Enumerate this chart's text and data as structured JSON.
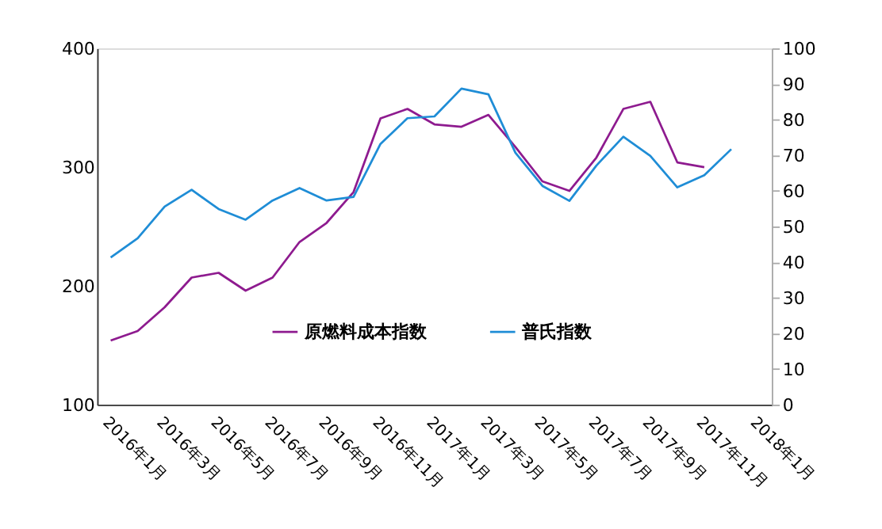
{
  "chart_data": {
    "type": "line",
    "categories": [
      "2016年1月",
      null,
      "2016年3月",
      null,
      "2016年5月",
      null,
      "2016年7月",
      null,
      "2016年9月",
      null,
      "2016年11月",
      null,
      "2017年1月",
      null,
      "2017年3月",
      null,
      "2017年5月",
      null,
      "2017年7月",
      null,
      "2017年9月",
      null,
      "2017年11月",
      null,
      "2018年1月"
    ],
    "series": [
      {
        "name": "原燃料成本指数",
        "color": "#8e1b8f",
        "values": [
          154,
          162,
          182,
          207,
          211,
          196,
          207,
          237,
          253,
          279,
          341,
          349,
          336,
          334,
          344,
          317,
          288,
          280,
          308,
          349,
          355,
          304,
          300,
          null,
          null
        ]
      },
      {
        "name": "普氏指数",
        "color": "#1f8dd6",
        "axis": "y2",
        "values": [
          41.3,
          46.7,
          55.6,
          60.3,
          54.9,
          51.9,
          57.3,
          60.8,
          57.3,
          58.3,
          73.2,
          80.4,
          80.9,
          88.7,
          87.1,
          70.7,
          61.4,
          57.2,
          67.1,
          75.2,
          69.8,
          61.0,
          64.4,
          71.7,
          null
        ]
      }
    ],
    "ylim": [
      100,
      400
    ],
    "yticks": [
      100,
      200,
      300,
      400
    ],
    "y2lim": [
      0,
      100
    ],
    "y2ticks": [
      0,
      10,
      20,
      30,
      40,
      50,
      60,
      70,
      80,
      90,
      100
    ],
    "grid": false,
    "legend": "bottom",
    "marker": "none",
    "line_style": "solid"
  }
}
